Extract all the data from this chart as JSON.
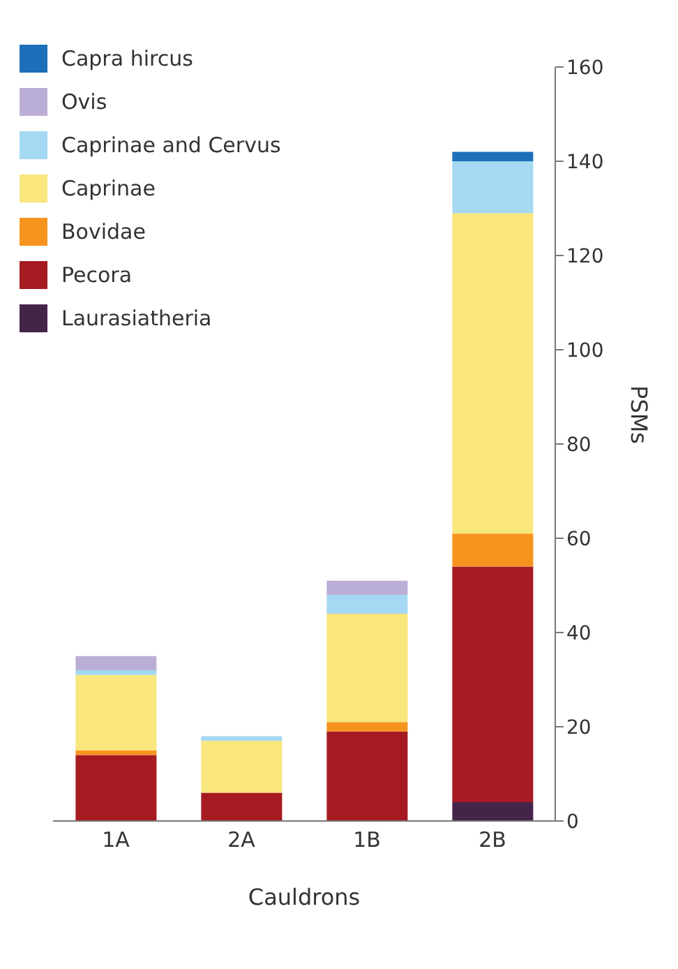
{
  "chart_data": {
    "type": "bar",
    "stacked": true,
    "xlabel": "Cauldrons",
    "ylabel": "PSMs",
    "categories": [
      "1A",
      "2A",
      "1B",
      "2B"
    ],
    "series": [
      {
        "name": "Laurasiatheria",
        "color": "#45244a",
        "values": [
          0,
          0,
          0,
          4
        ]
      },
      {
        "name": "Pecora",
        "color": "#a51b21",
        "values": [
          14,
          6,
          19,
          50
        ]
      },
      {
        "name": "Bovidae",
        "color": "#f6941f",
        "values": [
          1,
          0,
          2,
          7
        ]
      },
      {
        "name": "Caprinae",
        "color": "#f9e67c",
        "values": [
          16,
          11,
          23,
          68
        ]
      },
      {
        "name": "Caprinae and Cervus",
        "color": "#a5d8f2",
        "values": [
          1,
          1,
          4,
          11
        ]
      },
      {
        "name": "Ovis",
        "color": "#bbaed6",
        "values": [
          3,
          0,
          3,
          0
        ]
      },
      {
        "name": "Capra hircus",
        "color": "#1c6fb8",
        "values": [
          0,
          0,
          0,
          2
        ]
      }
    ],
    "ylim": [
      0,
      160
    ],
    "yticks": [
      0,
      20,
      40,
      60,
      80,
      100,
      120,
      140,
      160
    ],
    "grid": false,
    "legend": "top left"
  }
}
